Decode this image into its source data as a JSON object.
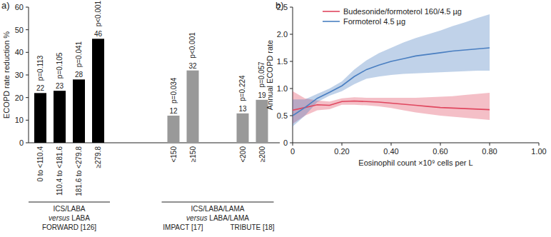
{
  "chart_data": [
    {
      "type": "bar",
      "panel_label": "a)",
      "ylabel": "ECOPD rate reduction %",
      "ylim": [
        0,
        60
      ],
      "yticks": [
        0,
        10,
        20,
        30,
        40,
        50,
        60
      ],
      "data_labels": true,
      "groups": [
        {
          "label": "ICS/LABA",
          "comparison": "versus LABA",
          "color": "#000000",
          "studies": [
            {
              "name": "FORWARD [126]",
              "categories": [
                "0 to <110.4",
                "110.4 to <181.6",
                "181.6 to <279.8",
                "≥279.8"
              ],
              "values": [
                22,
                23,
                28,
                46
              ],
              "p_values": [
                "p=0.113",
                "p=0.105",
                "p=0.041",
                "p<0.001"
              ]
            }
          ]
        },
        {
          "label": "ICS/LABA/LAMA",
          "comparison": "versus LABA/LAMA",
          "color": "#999999",
          "studies": [
            {
              "name": "IMPACT [17]",
              "categories": [
                "<150",
                "≥150"
              ],
              "values": [
                12,
                32
              ],
              "p_values": [
                "p=0.034",
                "p<0.001"
              ]
            },
            {
              "name": "TRIBUTE [18]",
              "categories": [
                "<200",
                "≥200"
              ],
              "values": [
                13,
                19
              ],
              "p_values": [
                "p=0.224",
                "p=0.057"
              ]
            }
          ]
        }
      ]
    },
    {
      "type": "line",
      "panel_label": "b)",
      "xlabel": "Eosinophil count ×10⁹ cells per L",
      "ylabel": "Annual ECOPD rate",
      "xlim": [
        0,
        1
      ],
      "ylim": [
        0,
        2.5
      ],
      "xticks": [
        0,
        {
          "value": 0.2,
          "label": "0.20"
        },
        {
          "value": 0.4,
          "label": "0.40"
        },
        {
          "value": 0.6,
          "label": "0.60"
        },
        {
          "value": 0.8,
          "label": "0.80"
        },
        {
          "value": 1,
          "label": "1.00"
        }
      ],
      "yticks": [
        0,
        0.5,
        {
          "value": 1,
          "label": "1.0"
        },
        1.5,
        {
          "value": 2,
          "label": "2.0"
        },
        2.5
      ],
      "legend": "upper left",
      "x": [
        0,
        0.05,
        0.1,
        0.15,
        0.2,
        0.25,
        0.3,
        0.35,
        0.4,
        0.45,
        0.5,
        0.55,
        0.6,
        0.65,
        0.7,
        0.75,
        0.8
      ],
      "series": [
        {
          "name": "Budesonide/formoterol 160/4.5 µg",
          "color": "#e0475f",
          "values": [
            0.6,
            0.65,
            0.7,
            0.69,
            0.76,
            0.77,
            0.76,
            0.75,
            0.73,
            0.71,
            0.69,
            0.67,
            0.65,
            0.64,
            0.63,
            0.62,
            0.61
          ],
          "lower": [
            0.35,
            0.5,
            0.6,
            0.62,
            0.7,
            0.7,
            0.69,
            0.67,
            0.64,
            0.6,
            0.56,
            0.53,
            0.5,
            0.48,
            0.46,
            0.44,
            0.42
          ],
          "upper": [
            0.95,
            0.82,
            0.78,
            0.76,
            0.82,
            0.84,
            0.83,
            0.83,
            0.83,
            0.83,
            0.83,
            0.84,
            0.85,
            0.86,
            0.88,
            0.9,
            0.92
          ]
        },
        {
          "name": "Formoterol 4.5 µg",
          "color": "#4a7fc1",
          "values": [
            0.5,
            0.65,
            0.82,
            0.93,
            1.05,
            1.22,
            1.35,
            1.43,
            1.5,
            1.55,
            1.6,
            1.63,
            1.66,
            1.69,
            1.71,
            1.73,
            1.75
          ],
          "lower": [
            0.3,
            0.5,
            0.75,
            0.87,
            0.95,
            1.08,
            1.18,
            1.22,
            1.25,
            1.27,
            1.28,
            1.29,
            1.3,
            1.31,
            1.32,
            1.33,
            1.33
          ],
          "upper": [
            0.8,
            0.8,
            0.9,
            1.0,
            1.13,
            1.35,
            1.52,
            1.65,
            1.75,
            1.85,
            1.93,
            2.0,
            2.07,
            2.15,
            2.22,
            2.3,
            2.37
          ]
        }
      ]
    }
  ]
}
